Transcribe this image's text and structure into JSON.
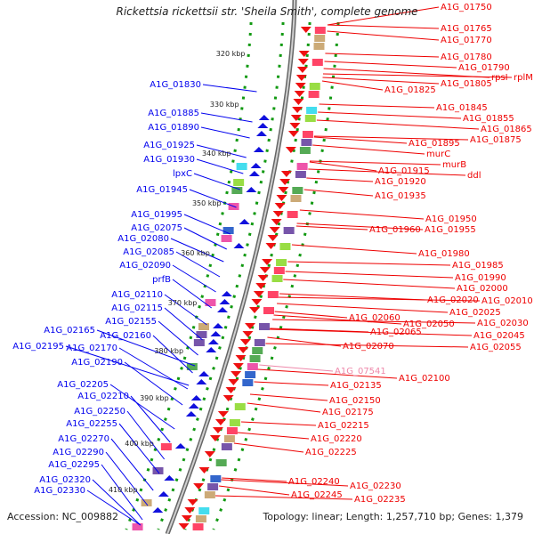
{
  "title": "Rickettsia rickettsii str. 'Sheila Smith', complete genome",
  "footer": {
    "accession": "Accession: NC_009882",
    "topology": "Topology: linear; Length: 1,257,710 bp; Genes: 1,379"
  },
  "colors": {
    "left_label": "#0000ee",
    "right_label": "#ee0000",
    "pink_label": "#ee88aa",
    "backbone": "#888888",
    "dots": "#119911"
  },
  "scale_ticks": [
    "320 kbp",
    "330 kbp",
    "340 kbp",
    "350 kbp",
    "360 kbp",
    "370 kbp",
    "380 kbp",
    "390 kbp",
    "400 kbp",
    "410 kbp"
  ],
  "left_labels": [
    "A1G_01830",
    "A1G_01885",
    "A1G_01890",
    "A1G_01925",
    "A1G_01930",
    "lpxC",
    "A1G_01945",
    "A1G_01995",
    "A1G_02075",
    "A1G_02080",
    "A1G_02085",
    "A1G_02090",
    "prfB",
    "A1G_02110",
    "A1G_02115",
    "A1G_02155",
    "A1G_02165",
    "A1G_02160",
    "A1G_02195",
    "A1G_02170",
    "A1G_02190",
    "A1G_02205",
    "A1G_02210",
    "A1G_02250",
    "A1G_02255",
    "A1G_02270",
    "A1G_02290",
    "A1G_02295",
    "A1G_02320",
    "A1G_02330"
  ],
  "right_labels": [
    "A1G_01750",
    "A1G_01765",
    "A1G_01770",
    "A1G_01780",
    "A1G_01790",
    "rpsI",
    "rplM",
    "A1G_01805",
    "A1G_01825",
    "A1G_01845",
    "A1G_01855",
    "A1G_01865",
    "A1G_01875",
    "A1G_01895",
    "murC",
    "murB",
    "ddl",
    "A1G_01915",
    "A1G_01920",
    "A1G_01935",
    "A1G_01950",
    "A1G_01960",
    "A1G_01955",
    "A1G_01980",
    "A1G_01985",
    "A1G_01990",
    "A1G_02000",
    "A1G_02010",
    "A1G_02020",
    "A1G_02025",
    "A1G_02030",
    "A1G_02060",
    "A1G_02050",
    "A1G_02065",
    "A1G_02045",
    "A1G_02070",
    "A1G_02055",
    "A1G_07541",
    "A1G_02100",
    "A1G_02135",
    "A1G_02150",
    "A1G_02175",
    "A1G_02215",
    "A1G_02220",
    "A1G_02225",
    "A1G_02240",
    "A1G_02230",
    "A1G_02245",
    "A1G_02235"
  ]
}
